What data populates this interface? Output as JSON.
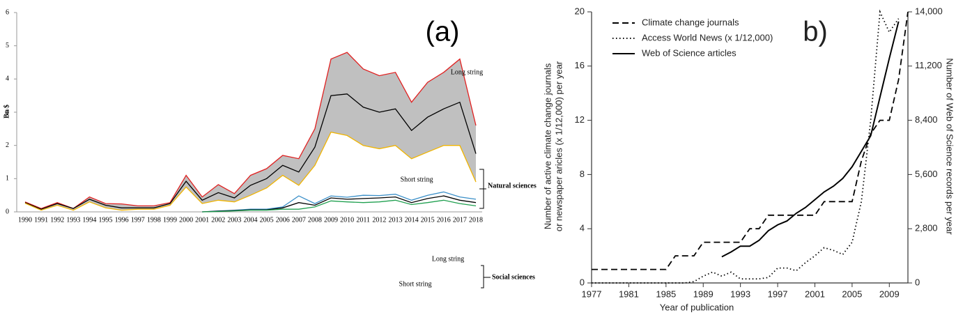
{
  "chart_data": [
    {
      "type": "line",
      "title": "(a)",
      "y_label": "Bn $",
      "categories": [
        "1990",
        "1991",
        "1992",
        "1993",
        "1994",
        "1995",
        "1996",
        "1997",
        "1998",
        "1999",
        "2000",
        "2001",
        "2002",
        "2003",
        "2004",
        "2005",
        "2006",
        "2007",
        "2008",
        "2009",
        "2010",
        "2011",
        "2012",
        "2013",
        "2014",
        "2015",
        "2016",
        "2017",
        "2018"
      ],
      "ylim": [
        0,
        6
      ],
      "yticks": [
        0,
        1,
        2,
        3,
        4,
        5,
        6
      ],
      "fill_between": [
        0,
        2
      ],
      "fill_color": "#c0c0c0",
      "series": [
        {
          "color": "#e02020",
          "values": [
            0.3,
            0.1,
            0.28,
            0.1,
            0.45,
            0.25,
            0.24,
            0.18,
            0.18,
            0.28,
            1.1,
            0.45,
            0.82,
            0.55,
            1.1,
            1.3,
            1.7,
            1.6,
            2.5,
            4.6,
            4.8,
            4.3,
            4.1,
            4.2,
            3.3,
            3.9,
            4.2,
            4.6,
            2.6
          ]
        },
        {
          "color": "#000000",
          "values": [
            0.28,
            0.08,
            0.25,
            0.1,
            0.38,
            0.2,
            0.12,
            0.12,
            0.12,
            0.25,
            0.92,
            0.35,
            0.58,
            0.42,
            0.8,
            1.0,
            1.4,
            1.2,
            1.95,
            3.5,
            3.55,
            3.15,
            3.0,
            3.1,
            2.45,
            2.85,
            3.1,
            3.3,
            1.75
          ]
        },
        {
          "color": "#f0b400",
          "values": [
            0.26,
            0.05,
            0.2,
            0.05,
            0.3,
            0.12,
            0.05,
            0.08,
            0.08,
            0.2,
            0.75,
            0.25,
            0.35,
            0.3,
            0.5,
            0.72,
            1.1,
            0.8,
            1.4,
            2.4,
            2.3,
            2.0,
            1.9,
            2.0,
            1.6,
            1.8,
            2.0,
            2.0,
            0.9
          ]
        },
        {
          "color": "#3a8fc8",
          "values": [
            null,
            null,
            null,
            null,
            null,
            null,
            null,
            null,
            null,
            null,
            null,
            0,
            0.03,
            0.05,
            0.08,
            0.08,
            0.15,
            0.48,
            0.25,
            0.48,
            0.44,
            0.5,
            0.49,
            0.53,
            0.35,
            0.5,
            0.6,
            0.45,
            0.38
          ]
        },
        {
          "color": "#000000",
          "values": [
            null,
            null,
            null,
            null,
            null,
            null,
            null,
            null,
            null,
            null,
            null,
            0,
            0.02,
            0.04,
            0.06,
            0.06,
            0.12,
            0.28,
            0.2,
            0.42,
            0.38,
            0.4,
            0.42,
            0.45,
            0.28,
            0.4,
            0.48,
            0.35,
            0.28
          ]
        },
        {
          "color": "#20a050",
          "values": [
            null,
            null,
            null,
            null,
            null,
            null,
            null,
            null,
            null,
            null,
            null,
            0,
            0.01,
            0.03,
            0.05,
            0.05,
            0.08,
            0.08,
            0.15,
            0.33,
            0.3,
            0.28,
            0.3,
            0.35,
            0.22,
            0.28,
            0.35,
            0.25,
            0.18
          ]
        }
      ],
      "annotations": [
        "Long string",
        "Short string",
        "Natural sciences",
        "Long string",
        "Short string",
        "Social sciences"
      ]
    },
    {
      "type": "line",
      "title": "b)",
      "x_label": "Year of publication",
      "y_label": [
        "Number of active climate change journals",
        "or newspaper aricles (x 1/12,000) per year"
      ],
      "y2_label": "Number of Web of Science records per year",
      "x": [
        1977,
        1978,
        1979,
        1980,
        1981,
        1982,
        1983,
        1984,
        1985,
        1986,
        1987,
        1988,
        1989,
        1990,
        1991,
        1992,
        1993,
        1994,
        1995,
        1996,
        1997,
        1998,
        1999,
        2000,
        2001,
        2002,
        2003,
        2004,
        2005,
        2006,
        2007,
        2008,
        2009,
        2010,
        2011
      ],
      "xlim": [
        1977,
        2011
      ],
      "xticks": [
        1977,
        1981,
        1985,
        1989,
        1993,
        1997,
        2001,
        2005,
        2009
      ],
      "ylim": [
        0,
        20
      ],
      "yticks": [
        0,
        4,
        8,
        12,
        16,
        20
      ],
      "y2lim": [
        0,
        14000
      ],
      "y2ticks": [
        0,
        {
          "value": 2800,
          "label": "2,800"
        },
        {
          "value": 5600,
          "label": "5,600"
        },
        {
          "value": 8400,
          "label": "8,400"
        },
        {
          "value": 11200,
          "label": "11,200"
        },
        {
          "value": 14000,
          "label": "14,000"
        }
      ],
      "legend": "upper left",
      "series": [
        {
          "name": "Climate change journals",
          "color": "#000000",
          "dash": "dashed",
          "values": [
            1,
            1,
            1,
            1,
            1,
            1,
            1,
            1,
            1,
            2,
            2,
            2,
            3,
            3,
            3,
            3,
            3,
            4,
            4,
            5,
            5,
            5,
            5,
            5,
            5,
            6,
            6,
            6,
            6,
            9,
            11,
            12,
            12,
            15,
            20
          ]
        },
        {
          "name": "Access World News (x 1/12,000)",
          "color": "#000000",
          "dash": "dotted",
          "values": [
            0,
            0,
            0,
            0,
            0,
            0,
            0,
            0,
            0,
            0,
            0,
            0.1,
            0.5,
            0.8,
            0.5,
            0.8,
            0.3,
            0.3,
            0.3,
            0.4,
            1.1,
            1.1,
            0.9,
            1.5,
            2.0,
            2.6,
            2.4,
            2.1,
            3.0,
            6,
            12,
            20,
            18.5,
            19.5,
            null
          ]
        },
        {
          "name": "Web of Science articles",
          "color": "#000000",
          "dash": "solid",
          "axis": "y2",
          "values": [
            null,
            null,
            null,
            null,
            null,
            null,
            null,
            null,
            null,
            null,
            null,
            null,
            null,
            null,
            1350,
            1600,
            1900,
            1900,
            2200,
            2700,
            3000,
            3200,
            3600,
            3900,
            4300,
            4700,
            5000,
            5400,
            6000,
            6800,
            7600,
            9600,
            11600,
            13500,
            null
          ]
        }
      ]
    }
  ]
}
